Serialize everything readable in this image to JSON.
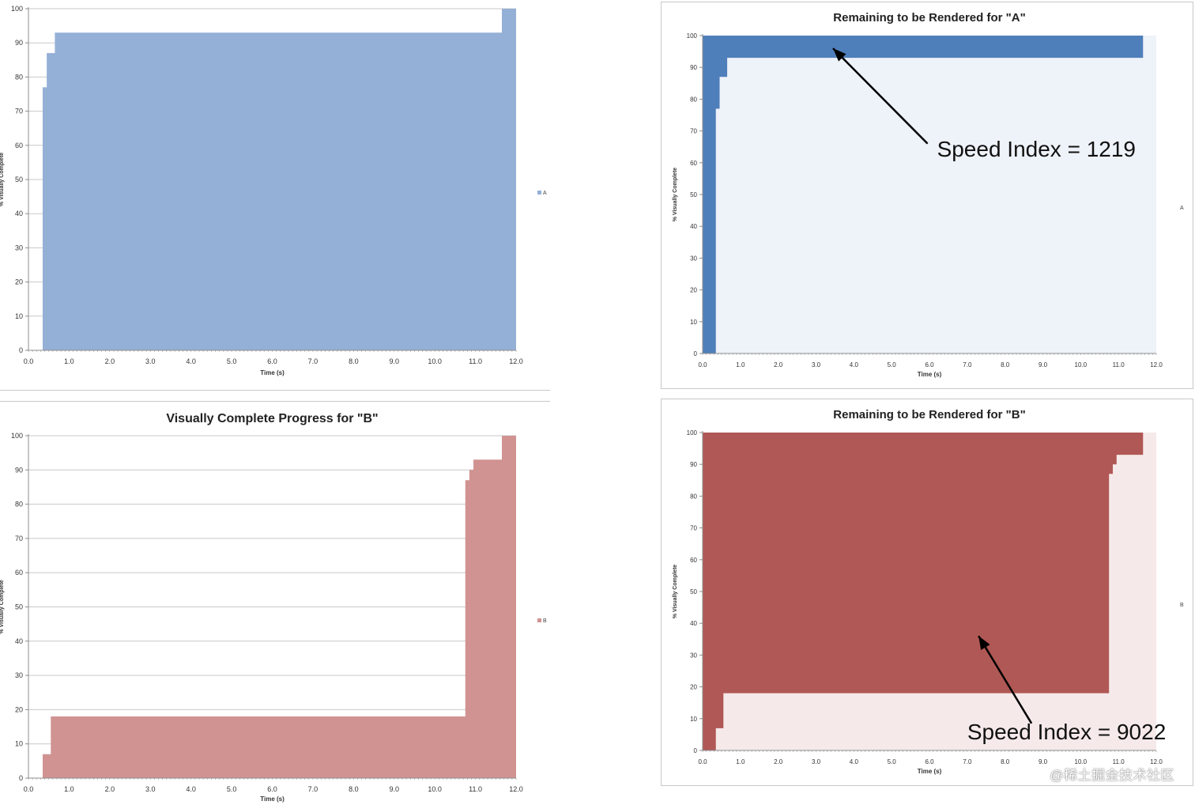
{
  "watermark": "@稀土掘金技术社区",
  "chart_data": [
    {
      "type": "area",
      "title": "",
      "xlabel": "Time (s)",
      "ylabel": "% Visually Complete",
      "xlim": [
        0,
        12
      ],
      "ylim": [
        0,
        100
      ],
      "xticks": [
        "0.0",
        "1.0",
        "2.0",
        "3.0",
        "4.0",
        "5.0",
        "6.0",
        "7.0",
        "8.0",
        "9.0",
        "10.0",
        "11.0",
        "12.0"
      ],
      "yticks": [
        "0",
        "10",
        "20",
        "30",
        "40",
        "50",
        "60",
        "70",
        "80",
        "90",
        "100"
      ],
      "legend": "right",
      "series": [
        {
          "name": "A",
          "color": "#95b0d6",
          "x": [
            0.35,
            0.45,
            0.65,
            11.65,
            12.0
          ],
          "values": [
            77,
            87,
            93,
            100,
            100
          ]
        }
      ],
      "annotations": []
    },
    {
      "type": "area",
      "title": "Remaining to be Rendered for \"A\"",
      "xlabel": "Time (s)",
      "ylabel": "% Visually Complete",
      "xlim": [
        0,
        12
      ],
      "ylim": [
        0,
        100
      ],
      "xticks": [
        "0.0",
        "1.0",
        "2.0",
        "3.0",
        "4.0",
        "5.0",
        "6.0",
        "7.0",
        "8.0",
        "9.0",
        "10.0",
        "11.0",
        "12.0"
      ],
      "yticks": [
        "0",
        "10",
        "20",
        "30",
        "40",
        "50",
        "60",
        "70",
        "80",
        "90",
        "100"
      ],
      "legend": "right",
      "background_color": "#eef2f9",
      "series": [
        {
          "name": "A",
          "color": "#4f7fbb",
          "x": [
            0.35,
            0.45,
            0.65,
            11.65
          ],
          "values": [
            77,
            87,
            93,
            100
          ]
        }
      ],
      "annotations": [
        {
          "text": "Speed Index = 1219",
          "text_x": 6.2,
          "text_y": 62,
          "arrow_from": [
            5.95,
            66
          ],
          "arrow_to": [
            3.45,
            96
          ]
        }
      ]
    },
    {
      "type": "area",
      "title": "Visually Complete Progress for \"B\"",
      "xlabel": "Time (s)",
      "ylabel": "% Visually Complete",
      "xlim": [
        0,
        12
      ],
      "ylim": [
        0,
        100
      ],
      "xticks": [
        "0.0",
        "1.0",
        "2.0",
        "3.0",
        "4.0",
        "5.0",
        "6.0",
        "7.0",
        "8.0",
        "9.0",
        "10.0",
        "11.0",
        "12.0"
      ],
      "yticks": [
        "0",
        "10",
        "20",
        "30",
        "40",
        "50",
        "60",
        "70",
        "80",
        "90",
        "100"
      ],
      "legend": "right",
      "series": [
        {
          "name": "B",
          "color": "#d09392",
          "x": [
            0.35,
            0.55,
            10.75,
            10.85,
            10.95,
            11.65,
            12.0
          ],
          "values": [
            7,
            18,
            87,
            90,
            93,
            100,
            100
          ]
        }
      ],
      "annotations": []
    },
    {
      "type": "area",
      "title": "Remaining to be Rendered for \"B\"",
      "xlabel": "Time (s)",
      "ylabel": "% Visually Complete",
      "xlim": [
        0,
        12
      ],
      "ylim": [
        0,
        100
      ],
      "xticks": [
        "0.0",
        "1.0",
        "2.0",
        "3.0",
        "4.0",
        "5.0",
        "6.0",
        "7.0",
        "8.0",
        "9.0",
        "10.0",
        "11.0",
        "12.0"
      ],
      "yticks": [
        "0",
        "10",
        "20",
        "30",
        "40",
        "50",
        "60",
        "70",
        "80",
        "90",
        "100"
      ],
      "legend": "right",
      "background_color": "#f6e9e9",
      "series": [
        {
          "name": "B",
          "color": "#b05855",
          "x": [
            0.35,
            0.55,
            10.75,
            10.85,
            10.95,
            11.65
          ],
          "values": [
            7,
            18,
            87,
            90,
            93,
            100
          ]
        }
      ],
      "annotations": [
        {
          "text": "Speed Index = 9022",
          "text_x": 7.0,
          "text_y": 3.5,
          "arrow_from": [
            8.7,
            8.5
          ],
          "arrow_to": [
            7.3,
            36
          ]
        }
      ]
    }
  ]
}
